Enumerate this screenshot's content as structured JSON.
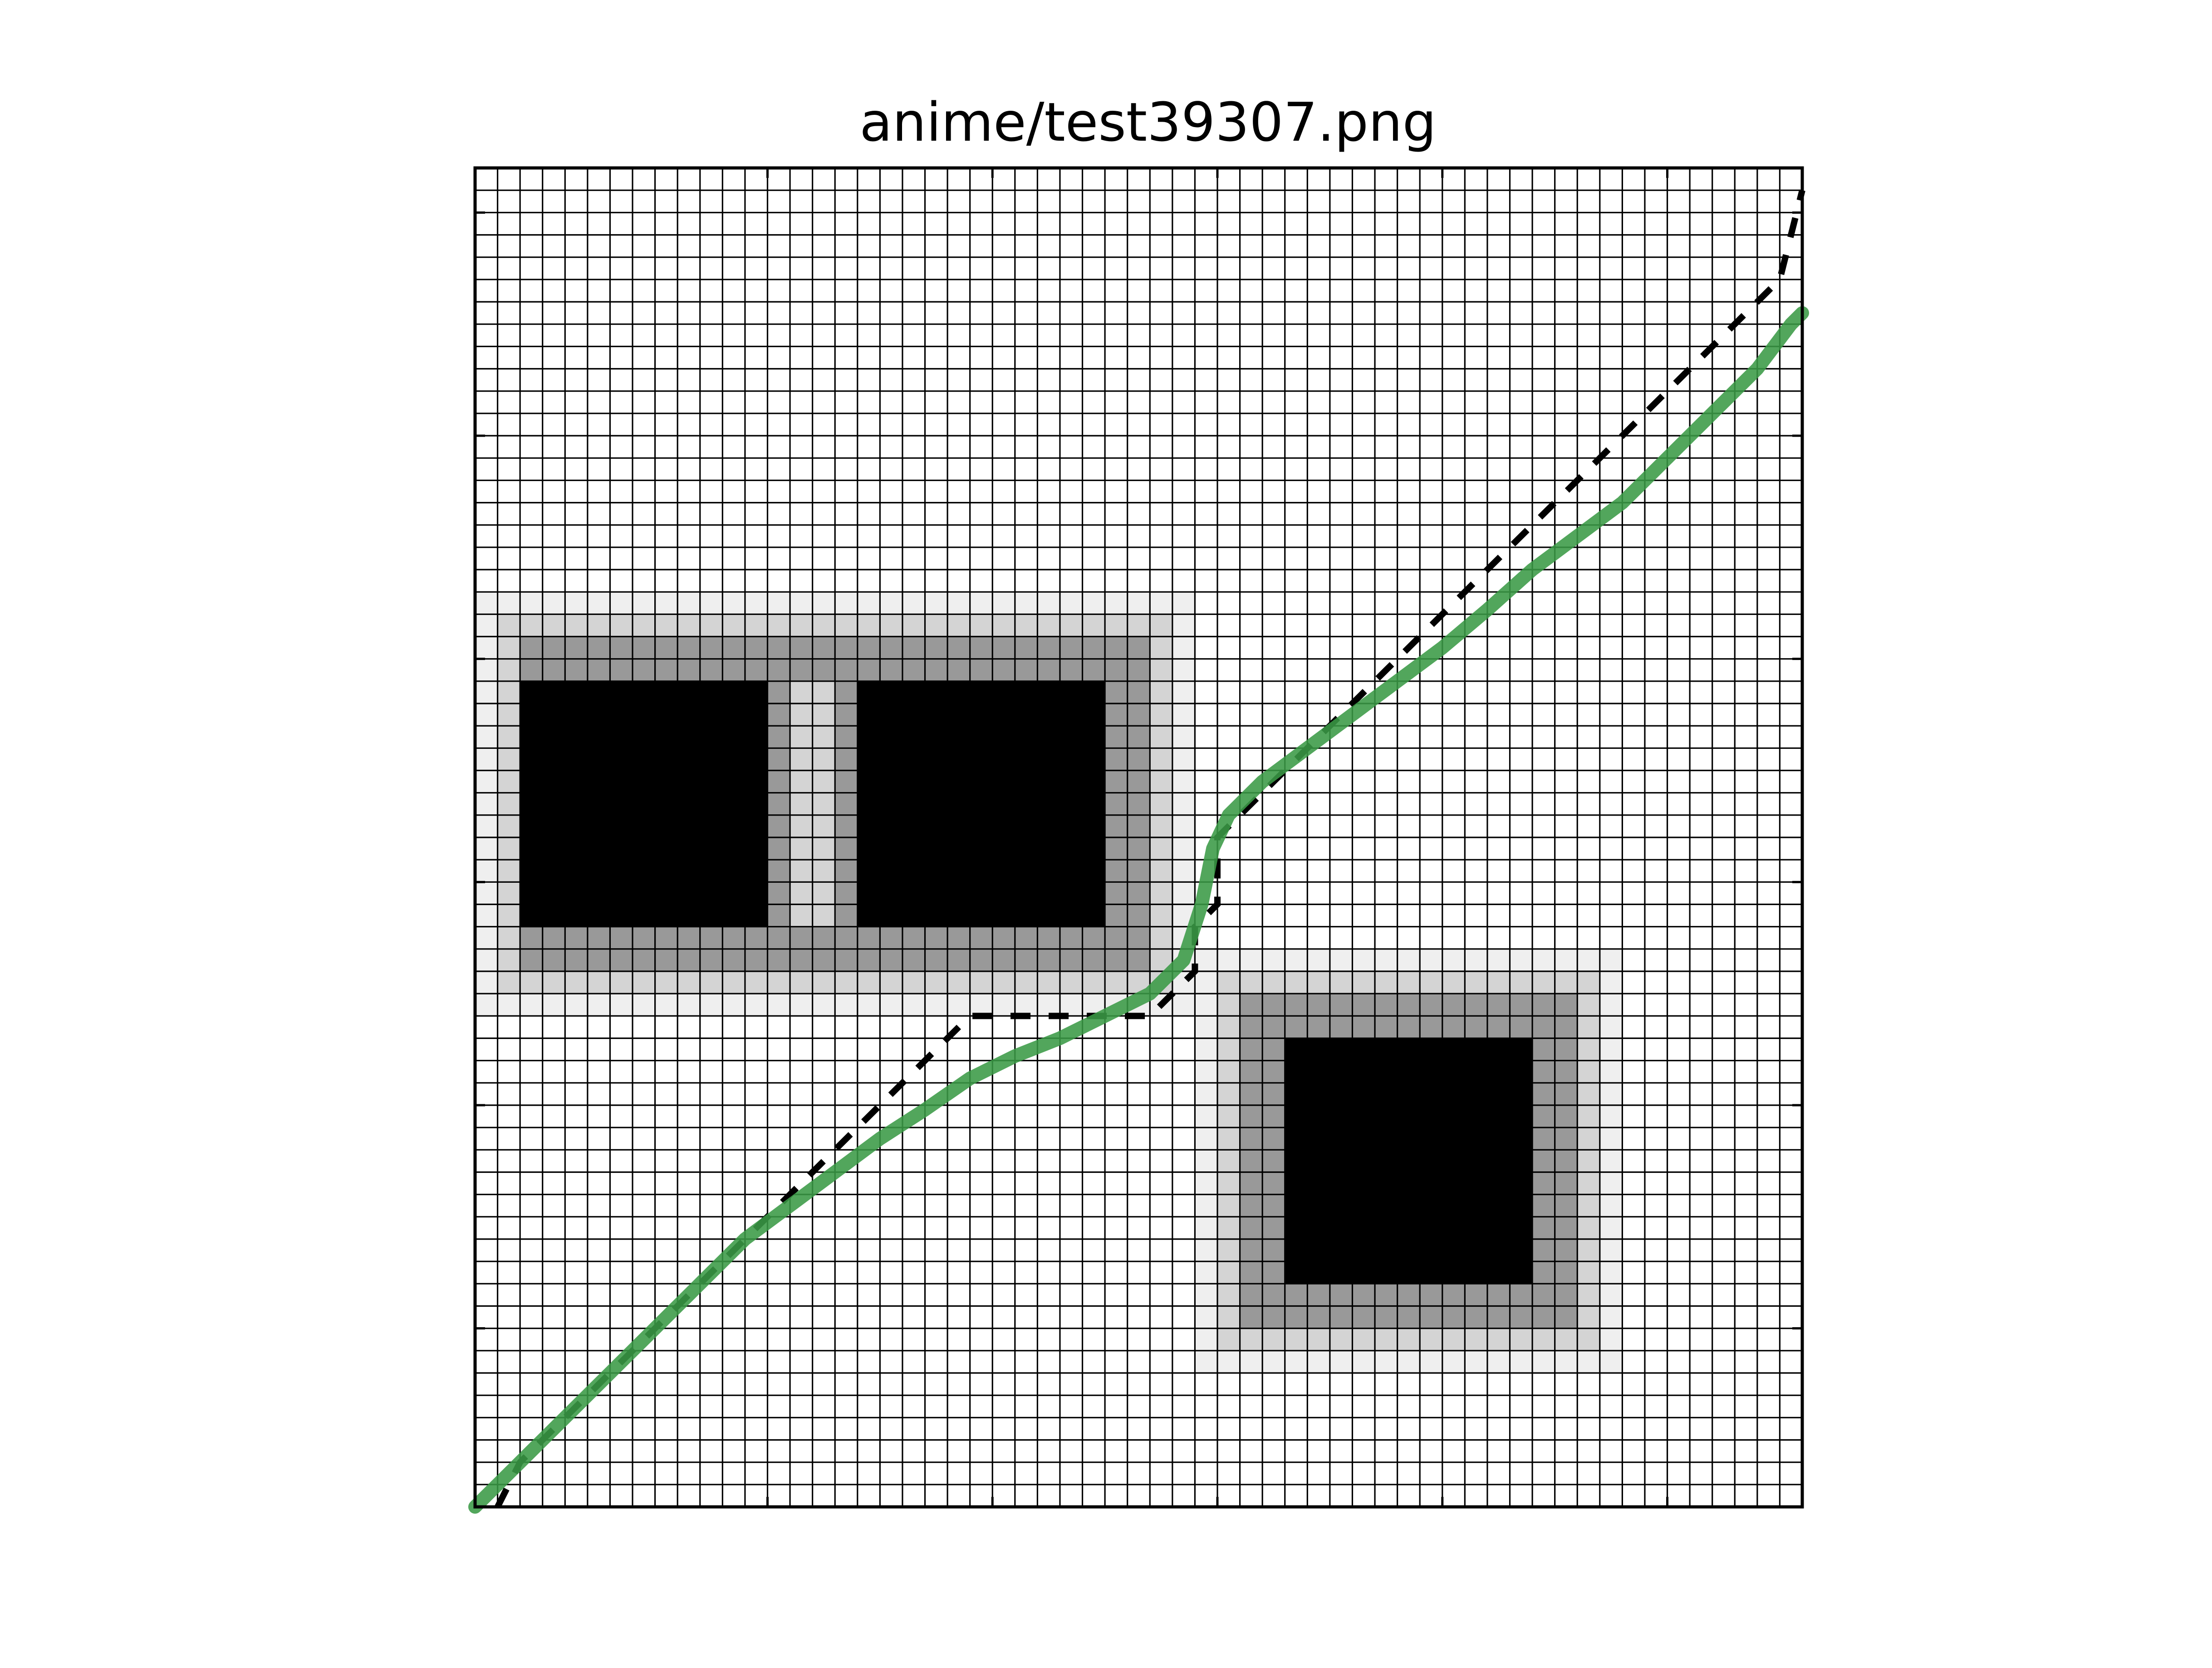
{
  "chart_data": {
    "type": "heatmap",
    "title": "anime/test39307.png",
    "xlabel": "",
    "ylabel": "",
    "grid": "cell-mesh",
    "xlim": [
      0,
      59
    ],
    "ylim": [
      0,
      60
    ],
    "major_ticks_x": [
      0,
      13,
      23,
      33,
      43,
      53
    ],
    "major_ticks_y": [
      2,
      12,
      22,
      32,
      42,
      52
    ],
    "blocks": [
      {
        "row_start": 19,
        "row_end": 38,
        "col_start": 0,
        "col_end": 32,
        "cores": [
          [
            2,
            13
          ],
          [
            17,
            28
          ]
        ],
        "core_rows": [
          23,
          34
        ]
      },
      {
        "row_start": 35,
        "row_end": 54,
        "col_start": 32,
        "col_end": 51,
        "cores": [
          [
            36,
            47
          ]
        ],
        "core_rows": [
          39,
          50
        ]
      }
    ],
    "shade_levels": {
      "core": "#000000",
      "ring1": "#999999",
      "ring2": "#d4d4d4",
      "ring3": "#efefef",
      "background": "#ffffff"
    },
    "series": [
      {
        "style": "dashed-step",
        "color": "#000000",
        "points": [
          [
            1,
            60
          ],
          [
            2,
            58
          ],
          [
            3,
            57
          ],
          [
            4,
            56
          ],
          [
            5,
            55
          ],
          [
            6,
            54
          ],
          [
            7,
            53
          ],
          [
            8,
            52
          ],
          [
            9,
            51
          ],
          [
            10,
            50
          ],
          [
            11,
            49
          ],
          [
            12,
            48
          ],
          [
            13,
            47
          ],
          [
            14,
            46
          ],
          [
            15,
            45
          ],
          [
            16,
            44
          ],
          [
            17,
            43
          ],
          [
            18,
            42
          ],
          [
            19,
            41
          ],
          [
            20,
            40
          ],
          [
            21,
            39
          ],
          [
            22,
            38
          ],
          [
            23,
            38
          ],
          [
            24,
            38
          ],
          [
            25,
            38
          ],
          [
            26,
            38
          ],
          [
            27,
            38
          ],
          [
            28,
            38
          ],
          [
            29,
            38
          ],
          [
            30,
            38
          ],
          [
            31,
            37
          ],
          [
            32,
            36
          ],
          [
            32,
            35
          ],
          [
            32,
            34
          ],
          [
            33,
            33
          ],
          [
            33,
            32
          ],
          [
            33,
            31
          ],
          [
            33,
            30
          ],
          [
            34,
            29
          ],
          [
            35,
            28
          ],
          [
            36,
            27
          ],
          [
            37,
            26
          ],
          [
            38,
            25
          ],
          [
            39,
            24
          ],
          [
            40,
            23
          ],
          [
            41,
            22
          ],
          [
            42,
            21
          ],
          [
            43,
            20
          ],
          [
            44,
            19
          ],
          [
            45,
            18
          ],
          [
            46,
            17
          ],
          [
            47,
            16
          ],
          [
            48,
            15
          ],
          [
            49,
            14
          ],
          [
            50,
            13
          ],
          [
            51,
            12
          ],
          [
            52,
            11
          ],
          [
            53,
            10
          ],
          [
            54,
            9
          ],
          [
            55,
            8
          ],
          [
            56,
            7
          ],
          [
            57,
            6
          ],
          [
            58,
            5
          ],
          [
            59,
            1
          ]
        ]
      },
      {
        "style": "smooth",
        "color": "#3a9a46",
        "points": [
          [
            0,
            60
          ],
          [
            2,
            58
          ],
          [
            4,
            56
          ],
          [
            6,
            54
          ],
          [
            8,
            52
          ],
          [
            10,
            50
          ],
          [
            12,
            48
          ],
          [
            14,
            46.5
          ],
          [
            16,
            45
          ],
          [
            18,
            43.5
          ],
          [
            20,
            42.2
          ],
          [
            22,
            40.8
          ],
          [
            24,
            39.8
          ],
          [
            26,
            39
          ],
          [
            28,
            38
          ],
          [
            30,
            37
          ],
          [
            31.5,
            35.5
          ],
          [
            32.3,
            33
          ],
          [
            32.8,
            30.5
          ],
          [
            33.5,
            29
          ],
          [
            35,
            27.5
          ],
          [
            37,
            26
          ],
          [
            39,
            24.5
          ],
          [
            41,
            23
          ],
          [
            43,
            21.5
          ],
          [
            45,
            19.8
          ],
          [
            47,
            18
          ],
          [
            49,
            16.5
          ],
          [
            51,
            15
          ],
          [
            53,
            13
          ],
          [
            55,
            11
          ],
          [
            57,
            9
          ],
          [
            58.5,
            7
          ],
          [
            59,
            6.5
          ]
        ]
      }
    ]
  }
}
